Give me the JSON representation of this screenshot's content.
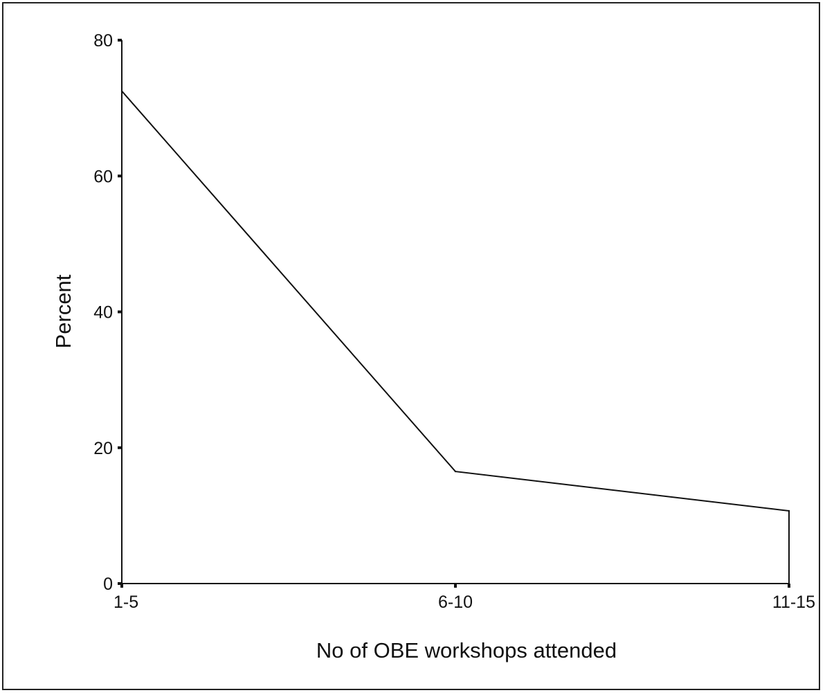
{
  "chart_data": {
    "type": "line",
    "title": "",
    "xlabel": "No of OBE workshops attended",
    "ylabel": "Percent",
    "categories": [
      "1-5",
      "6-10",
      "11-15"
    ],
    "series": [
      {
        "values": [
          72.5,
          16.5,
          10.7
        ]
      }
    ],
    "ylim": [
      0,
      80
    ],
    "yticks": [
      0,
      20,
      40,
      60,
      80
    ],
    "grid": false,
    "legend": "none",
    "line_color": "#111111"
  }
}
